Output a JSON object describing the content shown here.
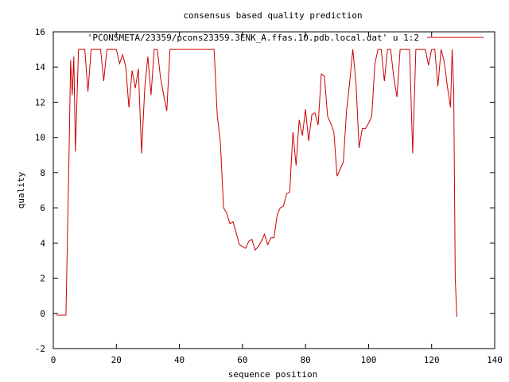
{
  "chart_data": {
    "type": "line",
    "title": "consensus based quality prediction",
    "xlabel": "sequence position",
    "ylabel": "quality",
    "xlim": [
      0,
      140
    ],
    "ylim": [
      -2,
      16
    ],
    "xticks": [
      0,
      20,
      40,
      60,
      80,
      100,
      120,
      140
    ],
    "yticks": [
      -2,
      0,
      2,
      4,
      6,
      8,
      10,
      12,
      14,
      16
    ],
    "grid": false,
    "legend_position": "top-right",
    "series": [
      {
        "name": "'PCONSMETA/23359/pcons23359.3ENK_A.ffas.10.pdb.local.dat' u 1:2",
        "color": "#cc0000",
        "x": [
          1,
          2,
          3,
          4,
          5,
          5.5,
          6,
          6.5,
          7,
          8,
          9,
          10,
          11,
          12,
          13,
          14,
          15,
          16,
          17,
          18,
          19,
          20,
          21,
          22,
          23,
          24,
          25,
          26,
          27,
          28,
          29,
          30,
          31,
          32,
          33,
          34,
          35,
          36,
          37,
          38,
          39,
          40,
          41,
          42,
          43,
          44,
          45,
          46,
          47,
          48,
          49,
          50,
          51,
          52,
          53,
          54,
          55,
          56,
          57,
          58,
          59,
          60,
          61,
          62,
          63,
          64,
          65,
          66,
          67,
          68,
          69,
          70,
          71,
          72,
          73,
          74,
          75,
          76,
          77,
          78,
          79,
          80,
          81,
          82,
          83,
          84,
          85,
          86,
          87,
          88,
          89,
          90,
          91,
          92,
          93,
          94,
          95,
          96,
          97,
          98,
          99,
          100,
          101,
          102,
          103,
          104,
          105,
          106,
          107,
          108,
          109,
          110,
          111,
          112,
          113,
          114,
          115,
          116,
          117,
          118,
          119,
          120,
          121,
          122,
          123,
          124,
          125,
          126,
          126.5,
          127,
          127.5,
          128
        ],
        "y": [
          -0.1,
          -0.1,
          -0.1,
          -0.1,
          9,
          14.4,
          12.4,
          14.6,
          9.2,
          15,
          15,
          15,
          12.6,
          15,
          15,
          15,
          15,
          13.2,
          15,
          15,
          15,
          15,
          14.2,
          14.7,
          14,
          11.7,
          13.8,
          12.8,
          13.9,
          9.1,
          12.8,
          14.6,
          12.4,
          15,
          15,
          13.4,
          12.4,
          11.5,
          15,
          15,
          15,
          15,
          15,
          15,
          15,
          15,
          15,
          15,
          15,
          15,
          15,
          15,
          15,
          11.3,
          9.7,
          6,
          5.7,
          5.1,
          5.2,
          4.6,
          3.9,
          3.8,
          3.7,
          4.1,
          4.2,
          3.6,
          3.8,
          4.1,
          4.5,
          3.9,
          4.3,
          4.3,
          5.6,
          6,
          6.1,
          6.8,
          6.9,
          10.3,
          8.4,
          11,
          10.1,
          11.6,
          9.8,
          11.3,
          11.4,
          10.7,
          13.6,
          13.5,
          11.2,
          10.8,
          10.3,
          7.8,
          8.2,
          8.6,
          11.5,
          13.1,
          15,
          13.1,
          9.4,
          10.5,
          10.5,
          10.8,
          11.2,
          14.2,
          15,
          15,
          13.2,
          15,
          15,
          13.4,
          12.3,
          15,
          15,
          15,
          15,
          9.1,
          15,
          15,
          15,
          15,
          14.1,
          15,
          15,
          12.9,
          15,
          14.3,
          12.9,
          11.7,
          15,
          12.7,
          2,
          -0.2
        ]
      }
    ]
  }
}
